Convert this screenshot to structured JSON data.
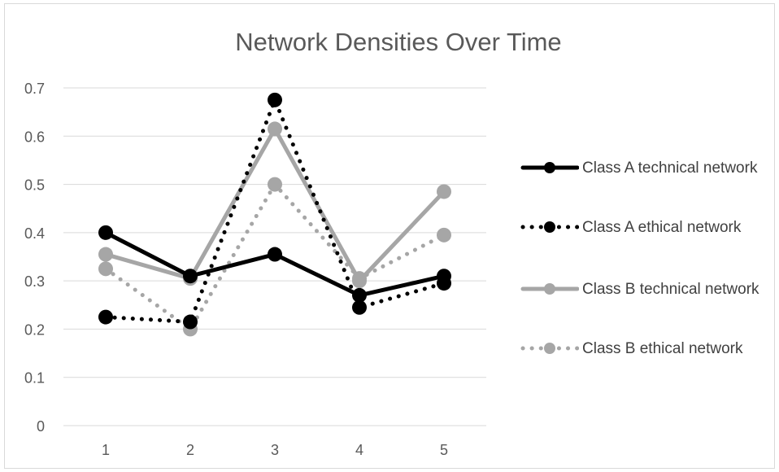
{
  "chart_data": {
    "type": "line",
    "title": "Network Densities Over Time",
    "xlabel": "",
    "ylabel": "",
    "categories": [
      "1",
      "2",
      "3",
      "4",
      "5"
    ],
    "ylim": [
      0,
      0.7
    ],
    "yticks": [
      "0",
      "0.1",
      "0.2",
      "0.3",
      "0.4",
      "0.5",
      "0.6",
      "0.7"
    ],
    "grid": true,
    "legend_position": "right",
    "series": [
      {
        "name": "Class A technical network",
        "values": [
          0.4,
          0.31,
          0.355,
          0.27,
          0.31
        ],
        "color": "#000000",
        "style": "solid"
      },
      {
        "name": "Class A ethical network",
        "values": [
          0.225,
          0.215,
          0.675,
          0.245,
          0.295
        ],
        "color": "#000000",
        "style": "dotted"
      },
      {
        "name": "Class B technical network",
        "values": [
          0.355,
          0.305,
          0.615,
          0.3,
          0.485
        ],
        "color": "#a6a6a6",
        "style": "solid"
      },
      {
        "name": "Class B ethical network",
        "values": [
          0.325,
          0.2,
          0.5,
          0.305,
          0.395
        ],
        "color": "#a6a6a6",
        "style": "dotted"
      }
    ]
  }
}
